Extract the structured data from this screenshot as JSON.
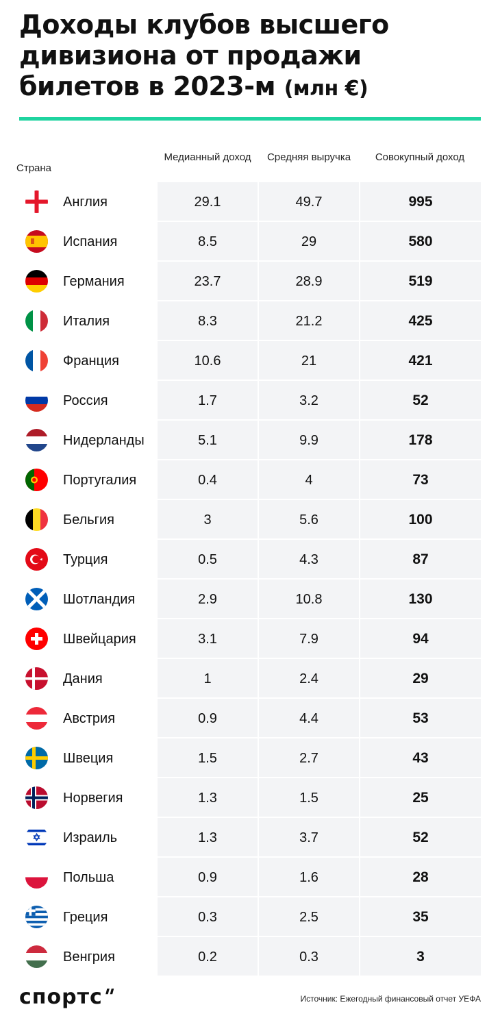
{
  "title_main": "Доходы клубов высшего дивизиона от продажи билетов в 2023-м",
  "title_unit": "(млн €)",
  "chart_data": {
    "type": "table",
    "columns": {
      "country": "Страна",
      "median": "Медианный доход",
      "avg": "Средняя выручка",
      "total": "Совокупный доход"
    },
    "rows": [
      {
        "country": "Англия",
        "flag": "england-flag",
        "median": "29.1",
        "avg": "49.7",
        "total": "995"
      },
      {
        "country": "Испания",
        "flag": "spain-flag",
        "median": "8.5",
        "avg": "29",
        "total": "580"
      },
      {
        "country": "Германия",
        "flag": "germany-flag",
        "median": "23.7",
        "avg": "28.9",
        "total": "519"
      },
      {
        "country": "Италия",
        "flag": "italy-flag",
        "median": "8.3",
        "avg": "21.2",
        "total": "425"
      },
      {
        "country": "Франция",
        "flag": "france-flag",
        "median": "10.6",
        "avg": "21",
        "total": "421"
      },
      {
        "country": "Россия",
        "flag": "russia-flag",
        "median": "1.7",
        "avg": "3.2",
        "total": "52"
      },
      {
        "country": "Нидерланды",
        "flag": "netherlands-flag",
        "median": "5.1",
        "avg": "9.9",
        "total": "178"
      },
      {
        "country": "Португалия",
        "flag": "portugal-flag",
        "median": "0.4",
        "avg": "4",
        "total": "73"
      },
      {
        "country": "Бельгия",
        "flag": "belgium-flag",
        "median": "3",
        "avg": "5.6",
        "total": "100"
      },
      {
        "country": "Турция",
        "flag": "turkey-flag",
        "median": "0.5",
        "avg": "4.3",
        "total": "87"
      },
      {
        "country": "Шотландия",
        "flag": "scotland-flag",
        "median": "2.9",
        "avg": "10.8",
        "total": "130"
      },
      {
        "country": "Швейцария",
        "flag": "switzerland-flag",
        "median": "3.1",
        "avg": "7.9",
        "total": "94"
      },
      {
        "country": "Дания",
        "flag": "denmark-flag",
        "median": "1",
        "avg": "2.4",
        "total": "29"
      },
      {
        "country": "Австрия",
        "flag": "austria-flag",
        "median": "0.9",
        "avg": "4.4",
        "total": "53"
      },
      {
        "country": "Швеция",
        "flag": "sweden-flag",
        "median": "1.5",
        "avg": "2.7",
        "total": "43"
      },
      {
        "country": "Норвегия",
        "flag": "norway-flag",
        "median": "1.3",
        "avg": "1.5",
        "total": "25"
      },
      {
        "country": "Израиль",
        "flag": "israel-flag",
        "median": "1.3",
        "avg": "3.7",
        "total": "52"
      },
      {
        "country": "Польша",
        "flag": "poland-flag",
        "median": "0.9",
        "avg": "1.6",
        "total": "28"
      },
      {
        "country": "Греция",
        "flag": "greece-flag",
        "median": "0.3",
        "avg": "2.5",
        "total": "35"
      },
      {
        "country": "Венгрия",
        "flag": "hungary-flag",
        "median": "0.2",
        "avg": "0.3",
        "total": "3"
      }
    ]
  },
  "footer": {
    "logo": "спортс",
    "source": "Источник: Ежегодный финансовый отчет УЕФА"
  },
  "colors": {
    "accent": "#1fd4a0",
    "cell_bg": "#f3f4f6",
    "text": "#111111"
  }
}
